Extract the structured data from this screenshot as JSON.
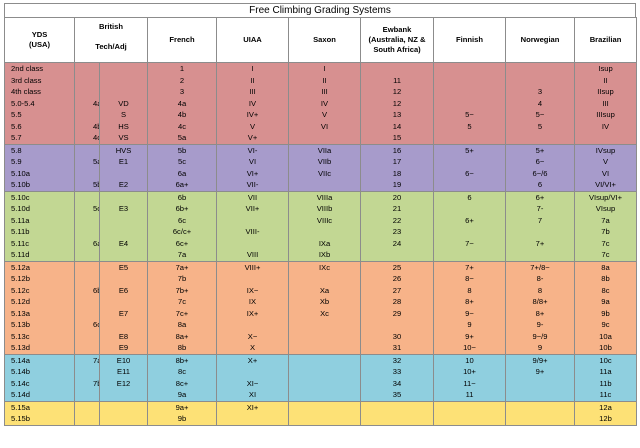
{
  "title": "Free Climbing Grading Systems",
  "headers": {
    "yds": [
      "YDS",
      "(USA)"
    ],
    "british": [
      "British",
      "Tech/Adj"
    ],
    "french": "French",
    "uiaa": "UIAA",
    "saxon": "Saxon",
    "ewbank": [
      "Ewbank",
      "(Australia, NZ &",
      "South Africa)"
    ],
    "finnish": "Finnish",
    "norwegian": "Norwegian",
    "brazilian": "Brazilian"
  },
  "colors": {
    "red": "#d79090",
    "purple": "#a79bcb",
    "green": "#c2d793",
    "orange": "#f7b389",
    "blue": "#8fcfdf",
    "yellow": "#fde176"
  },
  "groups": [
    {
      "color": "red",
      "rows": [
        {
          "yds": "2nd class",
          "tech": "",
          "adj": "",
          "french": "1",
          "uiaa": "I",
          "saxon": "I",
          "ewbank": "",
          "finnish": "",
          "norwegian": "",
          "brazilian": "Isup"
        },
        {
          "yds": "3rd class",
          "tech": "",
          "adj": "",
          "french": "2",
          "uiaa": "II",
          "saxon": "II",
          "ewbank": "11",
          "finnish": "",
          "norwegian": "",
          "brazilian": "II"
        },
        {
          "yds": "4th class",
          "tech": "",
          "adj": "",
          "french": "3",
          "uiaa": "III",
          "saxon": "III",
          "ewbank": "12",
          "finnish": "",
          "norwegian": "3",
          "brazilian": "IIsup"
        },
        {
          "yds": "5.0-5.4",
          "tech": "4a",
          "adj": "VD",
          "french": "4a",
          "uiaa": "IV",
          "saxon": "IV",
          "ewbank": "12",
          "finnish": "",
          "norwegian": "4",
          "brazilian": "III"
        },
        {
          "yds": "5.5",
          "tech": "",
          "adj": "S",
          "french": "4b",
          "uiaa": "IV+",
          "saxon": "V",
          "ewbank": "13",
          "finnish": "5−",
          "norwegian": "5−",
          "brazilian": "IIIsup"
        },
        {
          "yds": "5.6",
          "tech": "4b",
          "adj": "HS",
          "french": "4c",
          "uiaa": "V",
          "saxon": "VI",
          "ewbank": "14",
          "finnish": "5",
          "norwegian": "5",
          "brazilian": "IV"
        },
        {
          "yds": "5.7",
          "tech": "4c",
          "adj": "VS",
          "french": "5a",
          "uiaa": "V+",
          "saxon": "",
          "ewbank": "15",
          "finnish": "",
          "norwegian": "",
          "brazilian": ""
        }
      ]
    },
    {
      "color": "purple",
      "rows": [
        {
          "yds": "5.8",
          "tech": "",
          "adj": "HVS",
          "french": "5b",
          "uiaa": "VI-",
          "saxon": "VIIa",
          "ewbank": "16",
          "finnish": "5+",
          "norwegian": "5+",
          "brazilian": "IVsup"
        },
        {
          "yds": "5.9",
          "tech": "5a",
          "adj": "E1",
          "french": "5c",
          "uiaa": "VI",
          "saxon": "VIIb",
          "ewbank": "17",
          "finnish": "",
          "norwegian": "6−",
          "brazilian": "V"
        },
        {
          "yds": "5.10a",
          "tech": "",
          "adj": "",
          "french": "6a",
          "uiaa": "VI+",
          "saxon": "VIIc",
          "ewbank": "18",
          "finnish": "6−",
          "norwegian": "6−/6",
          "brazilian": "VI"
        },
        {
          "yds": "5.10b",
          "tech": "5b",
          "adj": "E2",
          "french": "6a+",
          "uiaa": "VII-",
          "saxon": "",
          "ewbank": "19",
          "finnish": "",
          "norwegian": "6",
          "brazilian": "VI/VI+"
        }
      ]
    },
    {
      "color": "green",
      "rows": [
        {
          "yds": "5.10c",
          "tech": "",
          "adj": "",
          "french": "6b",
          "uiaa": "VII",
          "saxon": "VIIIa",
          "ewbank": "20",
          "finnish": "6",
          "norwegian": "6+",
          "brazilian": "VIsup/VI+"
        },
        {
          "yds": "5.10d",
          "tech": "5c",
          "adj": "E3",
          "french": "6b+",
          "uiaa": "VII+",
          "saxon": "VIIIb",
          "ewbank": "21",
          "finnish": "",
          "norwegian": "7-",
          "brazilian": "VIsup"
        },
        {
          "yds": "5.11a",
          "tech": "",
          "adj": "",
          "french": "6c",
          "uiaa": "",
          "saxon": "VIIIc",
          "ewbank": "22",
          "finnish": "6+",
          "norwegian": "7",
          "brazilian": "7a"
        },
        {
          "yds": "5.11b",
          "tech": "",
          "adj": "",
          "french": "6c/c+",
          "uiaa": "VIII-",
          "saxon": "",
          "ewbank": "23",
          "finnish": "",
          "norwegian": "",
          "brazilian": "7b"
        },
        {
          "yds": "5.11c",
          "tech": "6a",
          "adj": "E4",
          "french": "6c+",
          "uiaa": "",
          "saxon": "IXa",
          "ewbank": "24",
          "finnish": "7−",
          "norwegian": "7+",
          "brazilian": "7c"
        },
        {
          "yds": "5.11d",
          "tech": "",
          "adj": "",
          "french": "7a",
          "uiaa": "VIII",
          "saxon": "IXb",
          "ewbank": "",
          "finnish": "",
          "norwegian": "",
          "brazilian": "7c"
        }
      ]
    },
    {
      "color": "orange",
      "rows": [
        {
          "yds": "5.12a",
          "tech": "",
          "adj": "E5",
          "french": "7a+",
          "uiaa": "VIII+",
          "saxon": "IXc",
          "ewbank": "25",
          "finnish": "7+",
          "norwegian": "7+/8−",
          "brazilian": "8a"
        },
        {
          "yds": "5.12b",
          "tech": "",
          "adj": "",
          "french": "7b",
          "uiaa": "",
          "saxon": "",
          "ewbank": "26",
          "finnish": "8−",
          "norwegian": "8-",
          "brazilian": "8b"
        },
        {
          "yds": "5.12c",
          "tech": "6b",
          "adj": "E6",
          "french": "7b+",
          "uiaa": "IX−",
          "saxon": "Xa",
          "ewbank": "27",
          "finnish": "8",
          "norwegian": "8",
          "brazilian": "8c"
        },
        {
          "yds": "5.12d",
          "tech": "",
          "adj": "",
          "french": "7c",
          "uiaa": "IX",
          "saxon": "Xb",
          "ewbank": "28",
          "finnish": "8+",
          "norwegian": "8/8+",
          "brazilian": "9a"
        },
        {
          "yds": "5.13a",
          "tech": "",
          "adj": "E7",
          "french": "7c+",
          "uiaa": "IX+",
          "saxon": "Xc",
          "ewbank": "29",
          "finnish": "9−",
          "norwegian": "8+",
          "brazilian": "9b"
        },
        {
          "yds": "5.13b",
          "tech": "6c",
          "adj": "",
          "french": "8a",
          "uiaa": "",
          "saxon": "",
          "ewbank": "",
          "finnish": "9",
          "norwegian": "9-",
          "brazilian": "9c"
        },
        {
          "yds": "5.13c",
          "tech": "",
          "adj": "E8",
          "french": "8a+",
          "uiaa": "X−",
          "saxon": "",
          "ewbank": "30",
          "finnish": "9+",
          "norwegian": "9−/9",
          "brazilian": "10a"
        },
        {
          "yds": "5.13d",
          "tech": "",
          "adj": "E9",
          "french": "8b",
          "uiaa": "X",
          "saxon": "",
          "ewbank": "31",
          "finnish": "10−",
          "norwegian": "9",
          "brazilian": "10b"
        }
      ]
    },
    {
      "color": "blue",
      "rows": [
        {
          "yds": "5.14a",
          "tech": "7a",
          "adj": "E10",
          "french": "8b+",
          "uiaa": "X+",
          "saxon": "",
          "ewbank": "32",
          "finnish": "10",
          "norwegian": "9/9+",
          "brazilian": "10c"
        },
        {
          "yds": "5.14b",
          "tech": "",
          "adj": "E11",
          "french": "8c",
          "uiaa": "",
          "saxon": "",
          "ewbank": "33",
          "finnish": "10+",
          "norwegian": "9+",
          "brazilian": "11a"
        },
        {
          "yds": "5.14c",
          "tech": "7b",
          "adj": "E12",
          "french": "8c+",
          "uiaa": "XI−",
          "saxon": "",
          "ewbank": "34",
          "finnish": "11−",
          "norwegian": "",
          "brazilian": "11b"
        },
        {
          "yds": "5.14d",
          "tech": "",
          "adj": "",
          "french": "9a",
          "uiaa": "XI",
          "saxon": "",
          "ewbank": "35",
          "finnish": "11",
          "norwegian": "",
          "brazilian": "11c"
        }
      ]
    },
    {
      "color": "yellow",
      "rows": [
        {
          "yds": "5.15a",
          "tech": "",
          "adj": "",
          "french": "9a+",
          "uiaa": "XI+",
          "saxon": "",
          "ewbank": "",
          "finnish": "",
          "norwegian": "",
          "brazilian": "12a"
        },
        {
          "yds": "5.15b",
          "tech": "",
          "adj": "",
          "french": "9b",
          "uiaa": "",
          "saxon": "",
          "ewbank": "",
          "finnish": "",
          "norwegian": "",
          "brazilian": "12b"
        }
      ]
    }
  ]
}
